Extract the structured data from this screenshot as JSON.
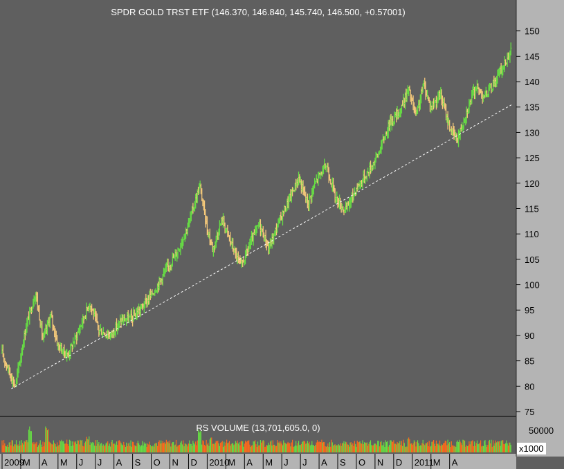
{
  "chart_data": [
    {
      "type": "candlestick",
      "title": "SPDR GOLD TRST ETF (146.370, 146.840, 145.740, 146.500, +0.57001)",
      "ylim": [
        75,
        152
      ],
      "yticks": [
        75,
        80,
        85,
        90,
        95,
        100,
        105,
        110,
        115,
        120,
        125,
        130,
        135,
        140,
        145,
        150
      ],
      "x_month_labels": [
        "2009",
        "M",
        "A",
        "M",
        "J",
        "J",
        "A",
        "S",
        "O",
        "N",
        "D",
        "2010",
        "M",
        "A",
        "M",
        "J",
        "J",
        "A",
        "S",
        "O",
        "N",
        "D",
        "2011",
        "M",
        "A"
      ],
      "price_path": [
        {
          "x": 0.0,
          "y": 86.5
        },
        {
          "x": 0.7,
          "y": 80.0
        },
        {
          "x": 1.3,
          "y": 92.0
        },
        {
          "x": 1.8,
          "y": 98.5
        },
        {
          "x": 2.2,
          "y": 89.0
        },
        {
          "x": 2.6,
          "y": 94.0
        },
        {
          "x": 3.0,
          "y": 88.0
        },
        {
          "x": 3.5,
          "y": 86.0
        },
        {
          "x": 4.0,
          "y": 90.0
        },
        {
          "x": 4.7,
          "y": 96.5
        },
        {
          "x": 5.2,
          "y": 91.0
        },
        {
          "x": 5.8,
          "y": 90.0
        },
        {
          "x": 6.4,
          "y": 93.0
        },
        {
          "x": 7.0,
          "y": 93.5
        },
        {
          "x": 7.6,
          "y": 96.0
        },
        {
          "x": 8.2,
          "y": 99.0
        },
        {
          "x": 8.8,
          "y": 103.0
        },
        {
          "x": 9.4,
          "y": 106.5
        },
        {
          "x": 10.0,
          "y": 112.0
        },
        {
          "x": 10.6,
          "y": 119.5
        },
        {
          "x": 11.0,
          "y": 111.0
        },
        {
          "x": 11.3,
          "y": 107.0
        },
        {
          "x": 11.8,
          "y": 113.0
        },
        {
          "x": 12.3,
          "y": 108.0
        },
        {
          "x": 12.8,
          "y": 103.5
        },
        {
          "x": 13.3,
          "y": 108.0
        },
        {
          "x": 13.8,
          "y": 112.0
        },
        {
          "x": 14.3,
          "y": 107.0
        },
        {
          "x": 14.8,
          "y": 112.0
        },
        {
          "x": 15.3,
          "y": 116.0
        },
        {
          "x": 15.9,
          "y": 121.0
        },
        {
          "x": 16.4,
          "y": 116.0
        },
        {
          "x": 16.9,
          "y": 121.0
        },
        {
          "x": 17.4,
          "y": 123.5
        },
        {
          "x": 17.9,
          "y": 117.0
        },
        {
          "x": 18.4,
          "y": 114.5
        },
        {
          "x": 19.0,
          "y": 119.0
        },
        {
          "x": 19.6,
          "y": 122.0
        },
        {
          "x": 20.2,
          "y": 126.0
        },
        {
          "x": 20.8,
          "y": 132.0
        },
        {
          "x": 21.3,
          "y": 134.0
        },
        {
          "x": 21.8,
          "y": 138.5
        },
        {
          "x": 22.2,
          "y": 133.0
        },
        {
          "x": 22.6,
          "y": 139.5
        },
        {
          "x": 23.0,
          "y": 135.0
        },
        {
          "x": 23.5,
          "y": 137.5
        },
        {
          "x": 24.0,
          "y": 131.0
        },
        {
          "x": 24.4,
          "y": 128.5
        },
        {
          "x": 24.9,
          "y": 134.0
        },
        {
          "x": 25.4,
          "y": 139.0
        },
        {
          "x": 25.9,
          "y": 137.0
        },
        {
          "x": 26.4,
          "y": 140.0
        },
        {
          "x": 26.9,
          "y": 143.0
        },
        {
          "x": 27.3,
          "y": 146.5
        }
      ],
      "trendline": {
        "x0": 0.5,
        "y0": 79.5,
        "x1": 27.35,
        "y1": 135.5,
        "style": "dashed",
        "color": "#ffffff"
      },
      "up_color": "#66dd44",
      "down_color": "#f5c97a"
    },
    {
      "type": "bar",
      "title": "RS VOLUME (13,701,605.0, 0)",
      "yticks": [
        50000
      ],
      "y_multiplier_label": "x1000",
      "bar_colors": [
        "#ff6a1a",
        "#66dd44"
      ],
      "volume_peaks": [
        {
          "x": 1.5,
          "v": 38000
        },
        {
          "x": 2.4,
          "v": 35000
        },
        {
          "x": 4.6,
          "v": 24000
        },
        {
          "x": 10.6,
          "v": 36000
        },
        {
          "x": 11.2,
          "v": 22000
        },
        {
          "x": 21.8,
          "v": 22000
        }
      ],
      "volume_base": 12000
    }
  ],
  "colors": {
    "background": "#5f5f5f",
    "axis_panel": "#b4b4b4"
  }
}
